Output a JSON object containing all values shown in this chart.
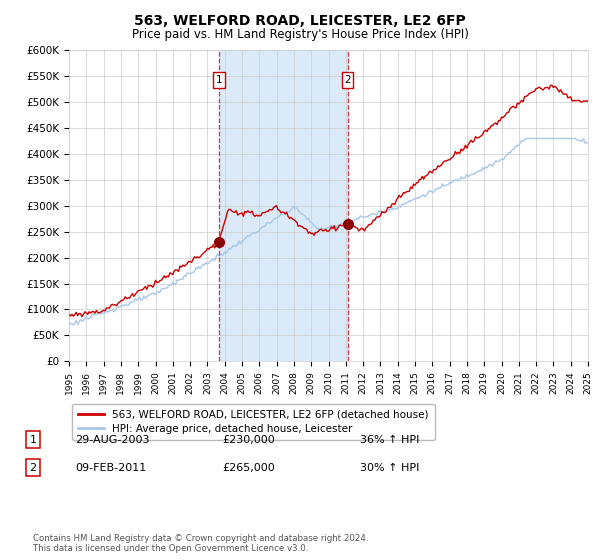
{
  "title": "563, WELFORD ROAD, LEICESTER, LE2 6FP",
  "subtitle": "Price paid vs. HM Land Registry's House Price Index (HPI)",
  "ylabel_ticks": [
    "£0",
    "£50K",
    "£100K",
    "£150K",
    "£200K",
    "£250K",
    "£300K",
    "£350K",
    "£400K",
    "£450K",
    "£500K",
    "£550K",
    "£600K"
  ],
  "ylim": [
    0,
    600000
  ],
  "ytick_vals": [
    0,
    50000,
    100000,
    150000,
    200000,
    250000,
    300000,
    350000,
    400000,
    450000,
    500000,
    550000,
    600000
  ],
  "x_start_year": 1995,
  "x_end_year": 2025,
  "purchase1_year": 2003.66,
  "purchase1_price": 230000,
  "purchase2_year": 2011.1,
  "purchase2_price": 265000,
  "legend1": "563, WELFORD ROAD, LEICESTER, LE2 6FP (detached house)",
  "legend2": "HPI: Average price, detached house, Leicester",
  "annotation1_date": "29-AUG-2003",
  "annotation1_price": "£230,000",
  "annotation1_hpi": "36% ↑ HPI",
  "annotation2_date": "09-FEB-2011",
  "annotation2_price": "£265,000",
  "annotation2_hpi": "30% ↑ HPI",
  "footnote": "Contains HM Land Registry data © Crown copyright and database right 2024.\nThis data is licensed under the Open Government Licence v3.0.",
  "hpi_color": "#a8c8e8",
  "price_color": "#cc0000",
  "shade_color": "#daeaf8",
  "background_color": "#ffffff",
  "grid_color": "#cccccc"
}
